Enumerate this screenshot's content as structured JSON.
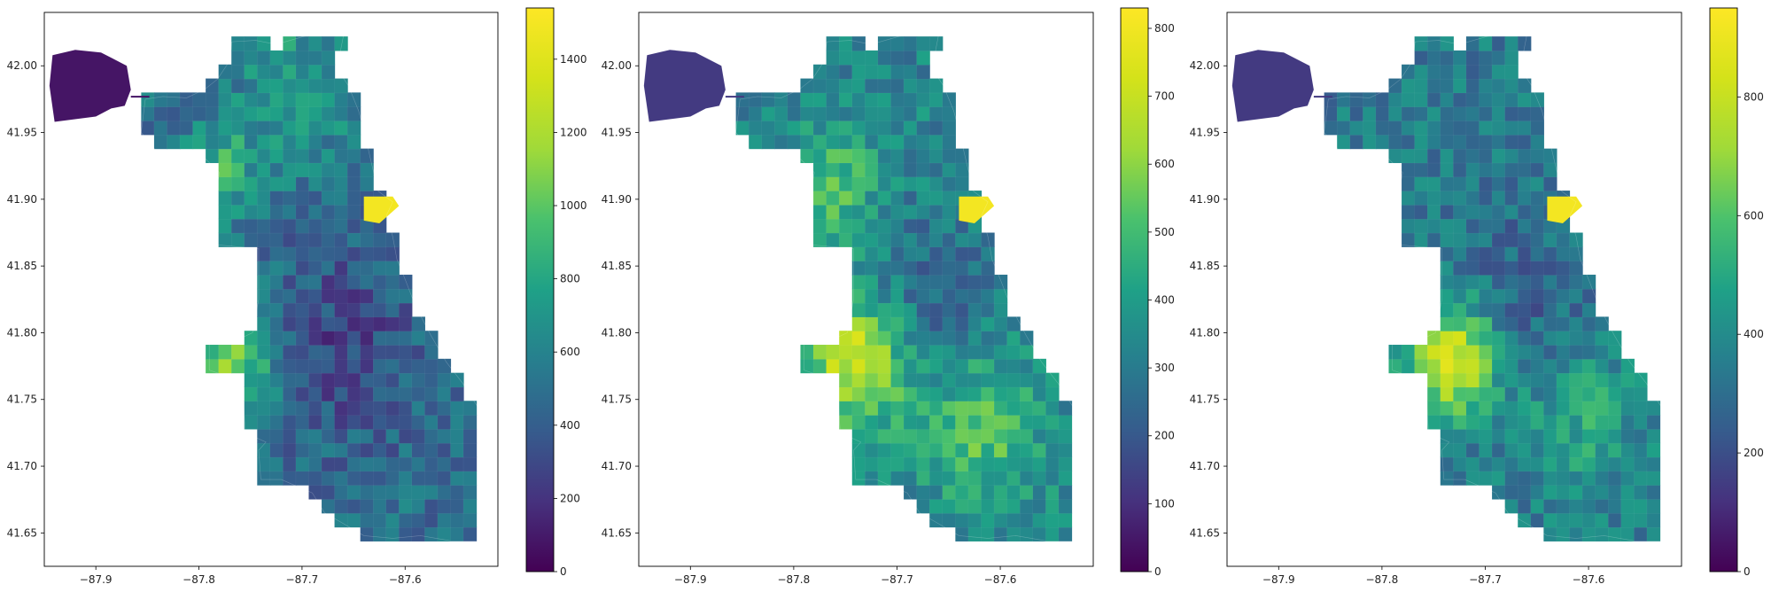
{
  "chart_data": [
    {
      "type": "choropleth-map",
      "xlim": [
        -87.95,
        -87.51
      ],
      "ylim": [
        41.625,
        42.04
      ],
      "x_ticks": [
        -87.9,
        -87.8,
        -87.7,
        -87.6
      ],
      "x_tick_labels": [
        "−87.9",
        "−87.8",
        "−87.7",
        "−87.6"
      ],
      "y_ticks": [
        41.65,
        41.7,
        41.75,
        41.8,
        41.85,
        41.9,
        41.95,
        42.0
      ],
      "y_tick_labels": [
        "41.65",
        "41.70",
        "41.75",
        "41.80",
        "41.85",
        "41.90",
        "41.95",
        "42.00"
      ],
      "colormap": "viridis",
      "colorbar": {
        "vmin": 0,
        "vmax": 1540,
        "ticks": [
          0,
          200,
          400,
          600,
          800,
          1000,
          1200,
          1400
        ],
        "tick_labels": [
          "0",
          "200",
          "400",
          "600",
          "800",
          "1000",
          "1200",
          "1400"
        ]
      }
    },
    {
      "type": "choropleth-map",
      "xlim": [
        -87.95,
        -87.51
      ],
      "ylim": [
        41.625,
        42.04
      ],
      "x_ticks": [
        -87.9,
        -87.8,
        -87.7,
        -87.6
      ],
      "x_tick_labels": [
        "−87.9",
        "−87.8",
        "−87.7",
        "−87.6"
      ],
      "y_ticks": [
        41.65,
        41.7,
        41.75,
        41.8,
        41.85,
        41.9,
        41.95,
        42.0
      ],
      "y_tick_labels": [
        "41.65",
        "41.70",
        "41.75",
        "41.80",
        "41.85",
        "41.90",
        "41.95",
        "42.00"
      ],
      "colormap": "viridis",
      "colorbar": {
        "vmin": 0,
        "vmax": 830,
        "ticks": [
          0,
          100,
          200,
          300,
          400,
          500,
          600,
          700,
          800
        ],
        "tick_labels": [
          "0",
          "100",
          "200",
          "300",
          "400",
          "500",
          "600",
          "700",
          "800"
        ]
      }
    },
    {
      "type": "choropleth-map",
      "xlim": [
        -87.95,
        -87.51
      ],
      "ylim": [
        41.625,
        42.04
      ],
      "x_ticks": [
        -87.9,
        -87.8,
        -87.7,
        -87.6
      ],
      "x_tick_labels": [
        "−87.9",
        "−87.8",
        "−87.7",
        "−87.6"
      ],
      "y_ticks": [
        41.65,
        41.7,
        41.75,
        41.8,
        41.85,
        41.9,
        41.95,
        42.0
      ],
      "y_tick_labels": [
        "41.65",
        "41.70",
        "41.75",
        "41.80",
        "41.85",
        "41.90",
        "41.95",
        "42.00"
      ],
      "colormap": "viridis",
      "colorbar": {
        "vmin": 0,
        "vmax": 950,
        "ticks": [
          0,
          200,
          400,
          600,
          800
        ],
        "tick_labels": [
          "0",
          "200",
          "400",
          "600",
          "800"
        ]
      }
    }
  ]
}
